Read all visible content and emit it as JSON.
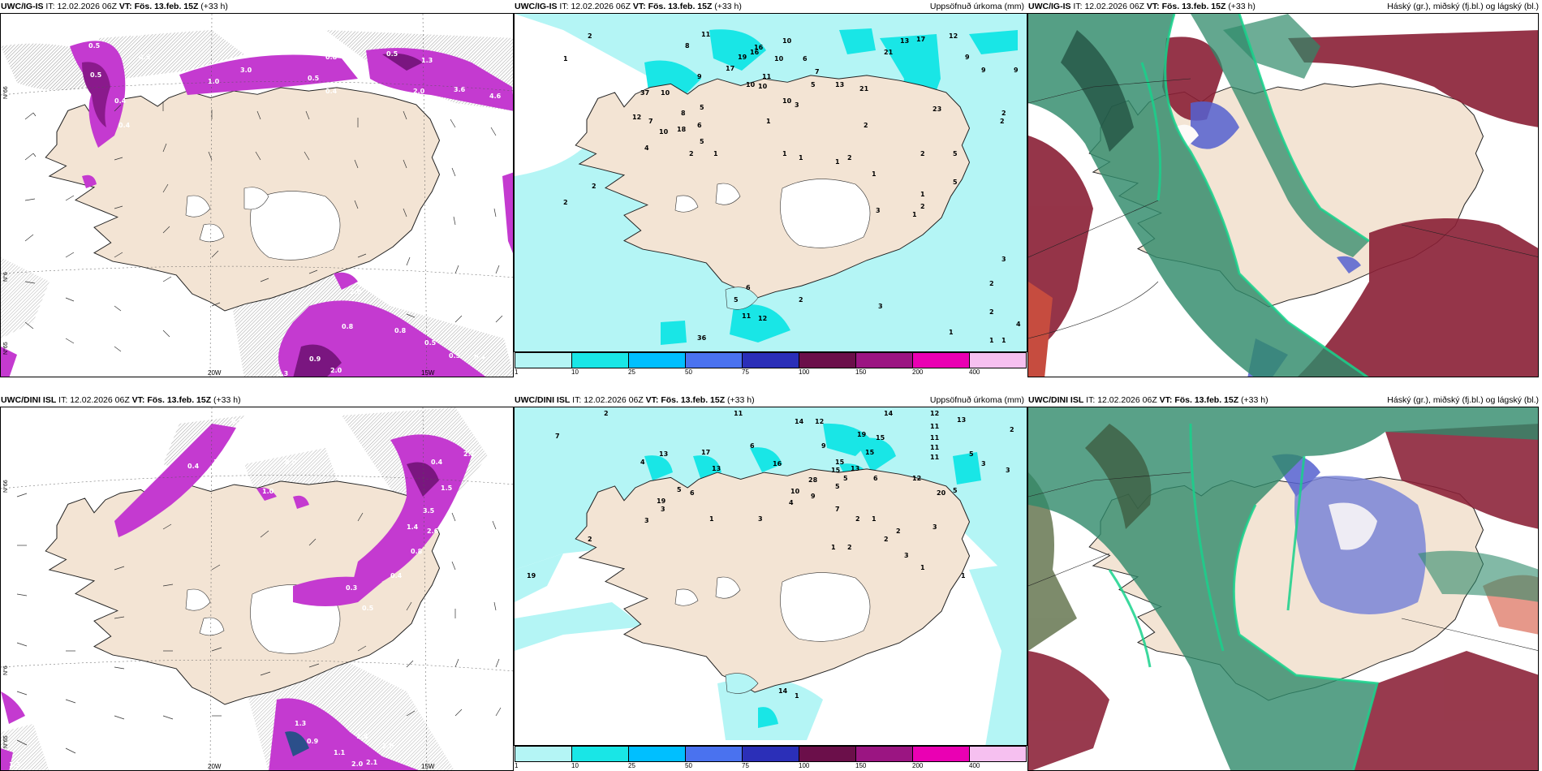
{
  "panels": [
    {
      "id": "p1",
      "model": "UWC/IG-IS",
      "it_label": "IT:",
      "it_value": "12.02.2026 06Z",
      "vt_label": "VT:",
      "vt_value": "Fös. 13.feb. 15Z",
      "lead": "(+33 h)",
      "right_title": "",
      "lon_labels": [
        "20W",
        "15W"
      ],
      "lat_labels": [
        "N°66",
        "N°6",
        "N°65"
      ],
      "values": [
        "0.5",
        "0.6",
        "0.5",
        "0.5",
        "0.4",
        "0.4",
        "3.0",
        "0.5",
        "1.0",
        "0.8",
        "0.5",
        "1.3",
        "0.4",
        "2.0",
        "3.6",
        "4.6",
        "2.0",
        "0.8",
        "0.8",
        "0.9",
        "0.5",
        "0.5",
        "0.4",
        "2.0",
        "0.3"
      ]
    },
    {
      "id": "p2",
      "model": "UWC/IG-IS",
      "it_label": "IT:",
      "it_value": "12.02.2026 06Z",
      "vt_label": "VT:",
      "vt_value": "Fös. 13.feb. 15Z",
      "lead": "(+33 h)",
      "right_title": "Uppsöfnuð úrkoma (mm)",
      "colorbar_labels": [
        "1",
        "10",
        "25",
        "50",
        "75",
        "100",
        "150",
        "200",
        "400"
      ],
      "values": [
        "2",
        "11",
        "16",
        "10",
        "12",
        "13",
        "17",
        "1",
        "8",
        "19",
        "16",
        "10",
        "6",
        "7",
        "21",
        "9",
        "9",
        "9",
        "17",
        "9",
        "10",
        "11",
        "10",
        "23",
        "37",
        "10",
        "10",
        "8",
        "5",
        "13",
        "21",
        "12",
        "7",
        "10",
        "18",
        "6",
        "5",
        "3",
        "1",
        "2",
        "4",
        "5",
        "2",
        "1",
        "1",
        "1",
        "1",
        "2",
        "2",
        "1",
        "2",
        "2",
        "5",
        "5",
        "2",
        "2",
        "1",
        "3",
        "1",
        "6",
        "5",
        "2",
        "3",
        "36",
        "11",
        "12",
        "2",
        "3",
        "2",
        "2",
        "1",
        "4",
        "1",
        "1"
      ]
    },
    {
      "id": "p3",
      "model": "UWC/IG-IS",
      "it_label": "IT:",
      "it_value": "12.02.2026 06Z",
      "vt_label": "VT:",
      "vt_value": "Fös. 13.feb. 15Z",
      "lead": "(+33 h)",
      "right_title": "Háský (gr.), miðský (fj.bl.) og lágský (bl.)"
    },
    {
      "id": "p4",
      "model": "UWC/DINI ISL",
      "it_label": "IT:",
      "it_value": "12.02.2026 06Z",
      "vt_label": "VT:",
      "vt_value": "Fös. 13.feb. 15Z",
      "lead": "(+33 h)",
      "right_title": "",
      "lon_labels": [
        "20W",
        "15W"
      ],
      "lat_labels": [
        "N°66",
        "N°6",
        "N°65"
      ],
      "values": [
        "0.3",
        "1.1",
        "0.5",
        "0.4",
        "2.0",
        "1.0",
        "0.4",
        "2.1",
        "1.5",
        "3.5",
        "2.5",
        "1.4",
        "2.6",
        "0.8",
        "0.4",
        "0.3",
        "0.5",
        "1.3",
        "2.0",
        "1.1",
        "2.1",
        "1.5",
        "0.9",
        "2.0",
        "1.3"
      ]
    },
    {
      "id": "p5",
      "model": "UWC/DINI ISL",
      "it_label": "IT:",
      "it_value": "12.02.2026 06Z",
      "vt_label": "VT:",
      "vt_value": "Fös. 13.feb. 15Z",
      "lead": "(+33 h)",
      "right_title": "Uppsöfnuð úrkoma (mm)",
      "colorbar_labels": [
        "1",
        "10",
        "25",
        "50",
        "75",
        "100",
        "150",
        "200",
        "400"
      ],
      "values": [
        "2",
        "11",
        "14",
        "12",
        "14",
        "12",
        "13",
        "7",
        "13",
        "11",
        "9",
        "19",
        "15",
        "11",
        "2",
        "4",
        "13",
        "17",
        "15",
        "15",
        "11",
        "6",
        "16",
        "15",
        "13",
        "5",
        "11",
        "3",
        "12",
        "3",
        "28",
        "5",
        "6",
        "5",
        "20",
        "19",
        "5",
        "6",
        "10",
        "9",
        "5",
        "7",
        "4",
        "1",
        "3",
        "3",
        "3",
        "2",
        "1",
        "2",
        "2",
        "3",
        "2",
        "1",
        "2",
        "3",
        "1",
        "19",
        "14",
        "1",
        "1"
      ]
    },
    {
      "id": "p6",
      "model": "UWC/DINI ISL",
      "it_label": "IT:",
      "it_value": "12.02.2026 06Z",
      "vt_label": "VT:",
      "vt_value": "Fös. 13.feb. 15Z",
      "lead": "(+33 h)",
      "right_title": "Háský (gr.), miðský (fj.bl.) og lágský (bl.)"
    }
  ],
  "colors": {
    "land": "#f3e4d4",
    "sea": "#ffffff",
    "precip_1": "#b4f5f5",
    "precip_10": "#19e6e6",
    "precip_25": "#00bfff",
    "precip_50": "#4a72ef",
    "precip_75": "#2b2fb8",
    "precip_100": "#6b0f4a",
    "precip_150": "#9b1582",
    "precip_200": "#ea00b3",
    "precip_400": "#f6c0f0",
    "high_cloud": "#2f8a6a",
    "mid_cloud": "#8a1f35",
    "low_cloud": "#5561d0",
    "snow_mag": "#c43ad0"
  }
}
